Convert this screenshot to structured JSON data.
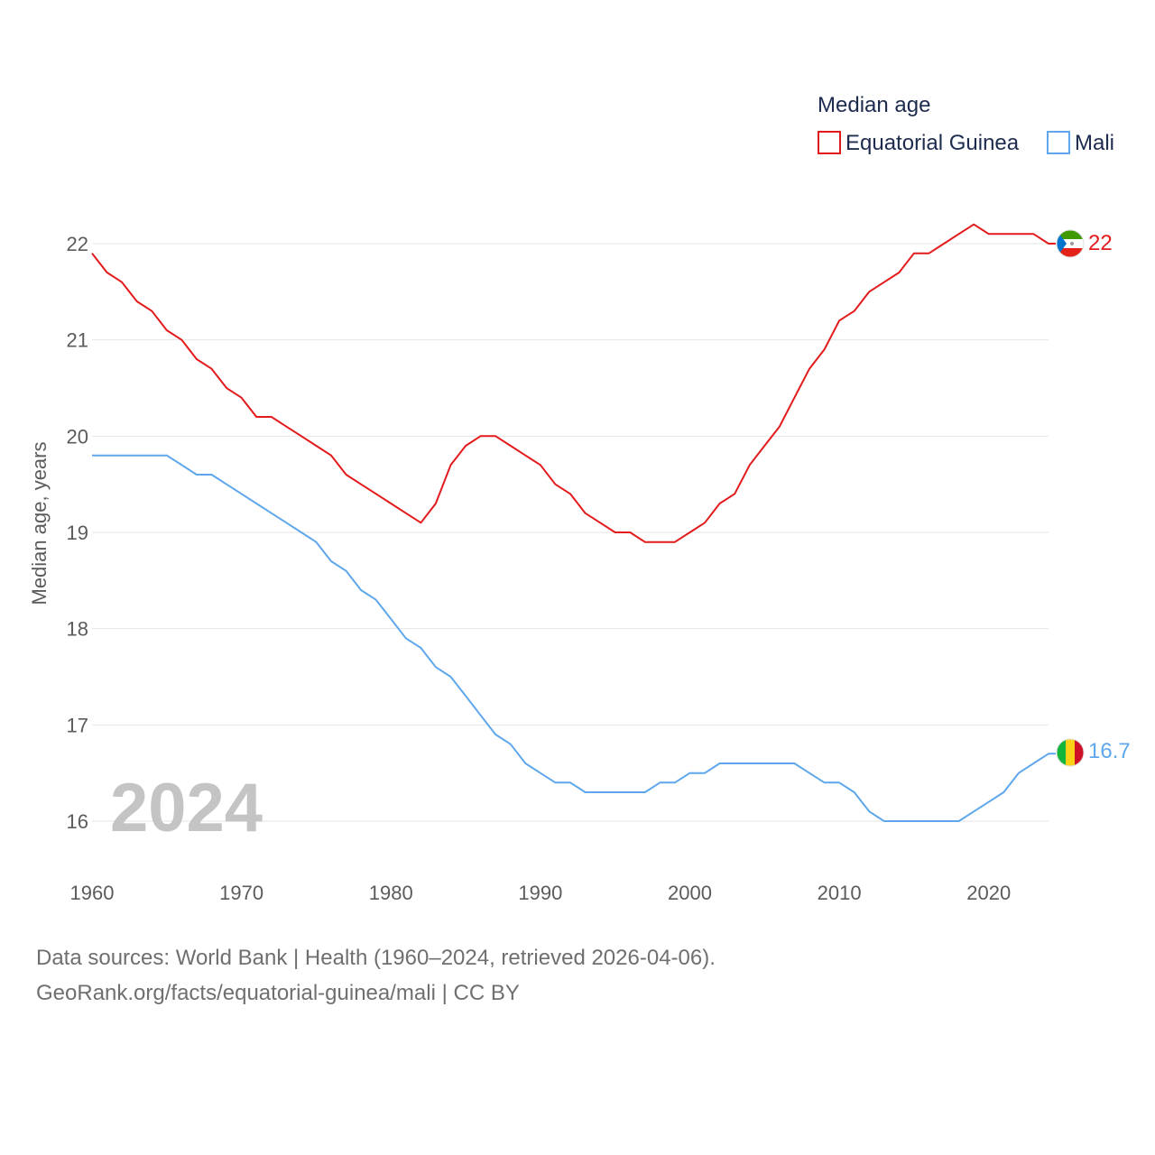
{
  "chart_data": {
    "type": "line",
    "legend_title": "Median age",
    "ylabel": "Median age, years",
    "xlabel": "",
    "year_label": "2024",
    "x": [
      1960,
      1961,
      1962,
      1963,
      1964,
      1965,
      1966,
      1967,
      1968,
      1969,
      1970,
      1971,
      1972,
      1973,
      1974,
      1975,
      1976,
      1977,
      1978,
      1979,
      1980,
      1981,
      1982,
      1983,
      1984,
      1985,
      1986,
      1987,
      1988,
      1989,
      1990,
      1991,
      1992,
      1993,
      1994,
      1995,
      1996,
      1997,
      1998,
      1999,
      2000,
      2001,
      2002,
      2003,
      2004,
      2005,
      2006,
      2007,
      2008,
      2009,
      2010,
      2011,
      2012,
      2013,
      2014,
      2015,
      2016,
      2017,
      2018,
      2019,
      2020,
      2021,
      2022,
      2023,
      2024
    ],
    "xlim": [
      1960,
      2024
    ],
    "ylim": [
      15.6,
      22.5
    ],
    "x_ticks": [
      "1960",
      "1970",
      "1980",
      "1990",
      "2000",
      "2010",
      "2020"
    ],
    "y_ticks": [
      "16",
      "17",
      "18",
      "19",
      "20",
      "21",
      "22"
    ],
    "series": [
      {
        "name": "Equatorial Guinea",
        "color": "#e31a1c",
        "end_label": "22",
        "values": [
          21.9,
          21.7,
          21.6,
          21.4,
          21.3,
          21.1,
          21.0,
          20.8,
          20.7,
          20.5,
          20.4,
          20.2,
          20.2,
          20.1,
          20.0,
          19.9,
          19.8,
          19.6,
          19.5,
          19.4,
          19.3,
          19.2,
          19.1,
          19.3,
          19.7,
          19.9,
          20.0,
          20.0,
          19.9,
          19.8,
          19.7,
          19.5,
          19.4,
          19.2,
          19.1,
          19.0,
          19.0,
          18.9,
          18.9,
          18.9,
          19.0,
          19.1,
          19.3,
          19.4,
          19.7,
          19.9,
          20.1,
          20.4,
          20.7,
          20.9,
          21.2,
          21.3,
          21.5,
          21.6,
          21.7,
          21.9,
          21.9,
          22.0,
          22.1,
          22.2,
          22.1,
          22.1,
          22.1,
          22.1,
          22.0
        ]
      },
      {
        "name": "Mali",
        "color": "#5ea7ec",
        "end_label": "16.7",
        "values": [
          19.8,
          19.8,
          19.8,
          19.8,
          19.8,
          19.8,
          19.7,
          19.6,
          19.6,
          19.5,
          19.4,
          19.3,
          19.2,
          19.1,
          19.0,
          18.9,
          18.7,
          18.6,
          18.4,
          18.3,
          18.1,
          17.9,
          17.8,
          17.6,
          17.5,
          17.3,
          17.1,
          16.9,
          16.8,
          16.6,
          16.5,
          16.4,
          16.4,
          16.3,
          16.3,
          16.3,
          16.3,
          16.3,
          16.4,
          16.4,
          16.5,
          16.5,
          16.6,
          16.6,
          16.6,
          16.6,
          16.6,
          16.6,
          16.5,
          16.4,
          16.4,
          16.3,
          16.1,
          16.0,
          16.0,
          16.0,
          16.0,
          16.0,
          16.0,
          16.1,
          16.2,
          16.3,
          16.5,
          16.6,
          16.7
        ]
      }
    ]
  },
  "footer": {
    "source": "Data sources: World Bank | Health (1960–2024, retrieved 2026-04-06).",
    "link": "GeoRank.org/facts/equatorial-guinea/mali | CC BY"
  },
  "flags": [
    {
      "name": "equatorial-guinea-flag-icon",
      "colors": [
        "#3e9a00",
        "#ffffff",
        "#e32118",
        "#0073ce"
      ]
    },
    {
      "name": "mali-flag-icon",
      "colors": [
        "#14b53a",
        "#fcd116",
        "#ce1126"
      ]
    }
  ]
}
